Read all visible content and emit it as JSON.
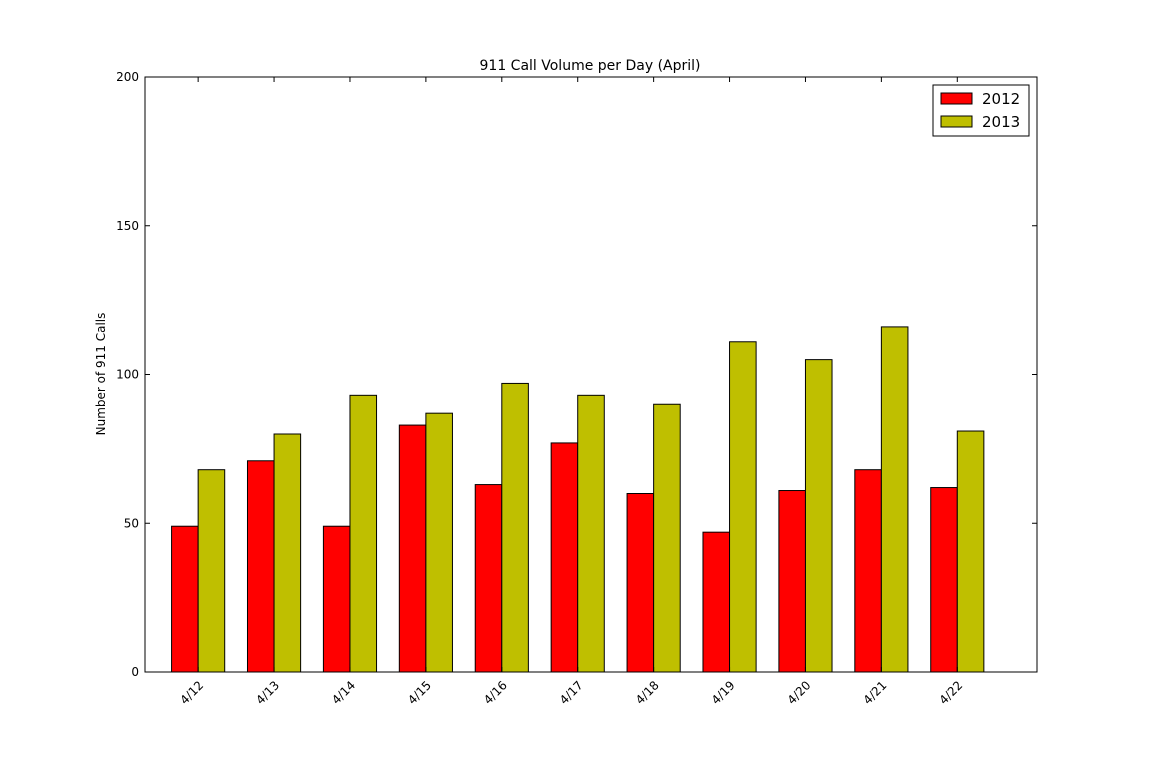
{
  "chart_data": {
    "type": "bar",
    "title": "911 Call Volume per Day (April)",
    "xlabel": "",
    "ylabel": "Number of 911 Calls",
    "categories": [
      "4/12",
      "4/13",
      "4/14",
      "4/15",
      "4/16",
      "4/17",
      "4/18",
      "4/19",
      "4/20",
      "4/21",
      "4/22"
    ],
    "series": [
      {
        "name": "2012",
        "color": "#ff0000",
        "values": [
          49,
          71,
          49,
          83,
          63,
          77,
          60,
          47,
          61,
          68,
          62
        ]
      },
      {
        "name": "2013",
        "color": "#bfbf00",
        "values": [
          68,
          80,
          93,
          87,
          97,
          93,
          90,
          111,
          105,
          116,
          81
        ]
      }
    ],
    "ylim": [
      0,
      200
    ],
    "yticks": [
      0,
      50,
      100,
      150,
      200
    ],
    "grid": false,
    "legend_position": "top-right"
  }
}
